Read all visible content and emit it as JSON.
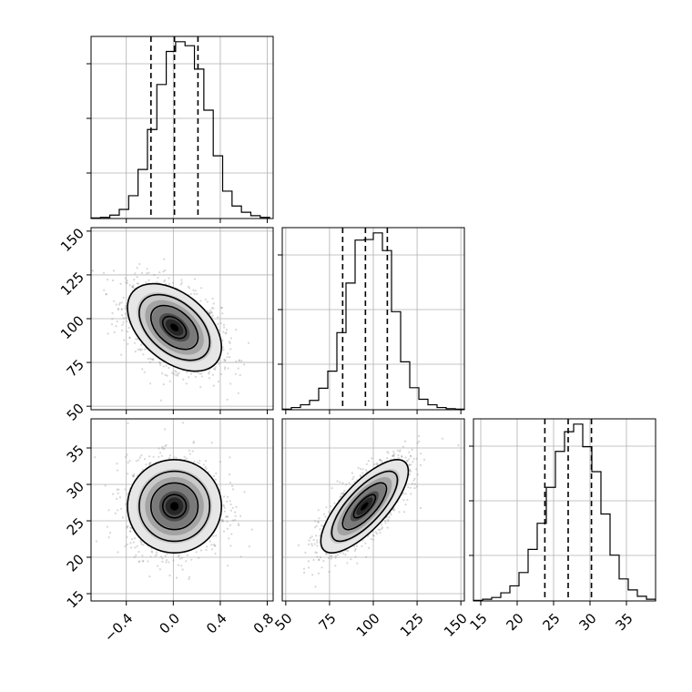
{
  "chart_data": {
    "type": "corner",
    "parameters": [
      {
        "key": "p0",
        "range": [
          -0.7,
          0.85
        ],
        "ticks": [
          -0.4,
          0.0,
          0.4,
          0.8
        ],
        "tick_labels": [
          "−0.4",
          "0.0",
          "0.4",
          "0.8"
        ],
        "quantiles": [
          -0.19,
          0.01,
          0.21
        ],
        "mean": 0.01,
        "sd": 0.2
      },
      {
        "key": "p1",
        "range": [
          48,
          152
        ],
        "ticks": [
          50,
          75,
          100,
          125,
          150
        ],
        "tick_labels": [
          "50",
          "75",
          "100",
          "125",
          "150"
        ],
        "quantiles": [
          82.5,
          95.5,
          108
        ],
        "mean": 95,
        "sd": 12.5
      },
      {
        "key": "p2",
        "range": [
          14,
          39
        ],
        "ticks": [
          15,
          20,
          25,
          30,
          35
        ],
        "tick_labels": [
          "15",
          "20",
          "25",
          "30",
          "35"
        ],
        "quantiles": [
          23.8,
          27,
          30.2
        ],
        "mean": 27,
        "sd": 3.2
      }
    ],
    "histograms": [
      {
        "param": "p0",
        "bins": [
          -0.7,
          -0.62,
          -0.54,
          -0.46,
          -0.38,
          -0.3,
          -0.22,
          -0.14,
          -0.06,
          0.02,
          0.1,
          0.18,
          0.26,
          0.34,
          0.42,
          0.5,
          0.58,
          0.66,
          0.74,
          0.82
        ],
        "counts": [
          1,
          2,
          6,
          16,
          40,
          86,
          156,
          235,
          293,
          310,
          303,
          262,
          190,
          110,
          48,
          22,
          11,
          5,
          2
        ]
      },
      {
        "param": "p1",
        "bins": [
          48,
          53.2,
          58.4,
          63.6,
          68.8,
          74,
          79.2,
          84.4,
          89.6,
          94.8,
          100,
          105.2,
          110.4,
          115.6,
          120.8,
          126,
          131.2,
          136.4,
          141.6,
          146.8,
          152
        ],
        "counts": [
          1,
          4,
          9,
          17,
          39,
          70,
          140,
          230,
          308,
          309,
          321,
          289,
          178,
          87,
          40,
          19,
          9,
          4,
          2,
          1
        ]
      },
      {
        "param": "p2",
        "bins": [
          14,
          15.25,
          16.5,
          17.75,
          19,
          20.25,
          21.5,
          22.75,
          24,
          25.25,
          26.5,
          27.75,
          29,
          30.25,
          31.5,
          32.75,
          34,
          35.25,
          36.5,
          37.75,
          39
        ],
        "counts": [
          1,
          3,
          6,
          14,
          26,
          49,
          89,
          134,
          196,
          258,
          292,
          305,
          266,
          223,
          150,
          79,
          38,
          19,
          8,
          3
        ]
      }
    ],
    "pairs": [
      {
        "x": "p0",
        "y": "p1",
        "corr": -0.45
      },
      {
        "x": "p0",
        "y": "p2",
        "corr": 0.0
      },
      {
        "x": "p1",
        "y": "p2",
        "corr": 0.75
      }
    ],
    "contour_levels_sigma": [
      0.5,
      1.0,
      1.5,
      2.0
    ],
    "grid": true
  }
}
